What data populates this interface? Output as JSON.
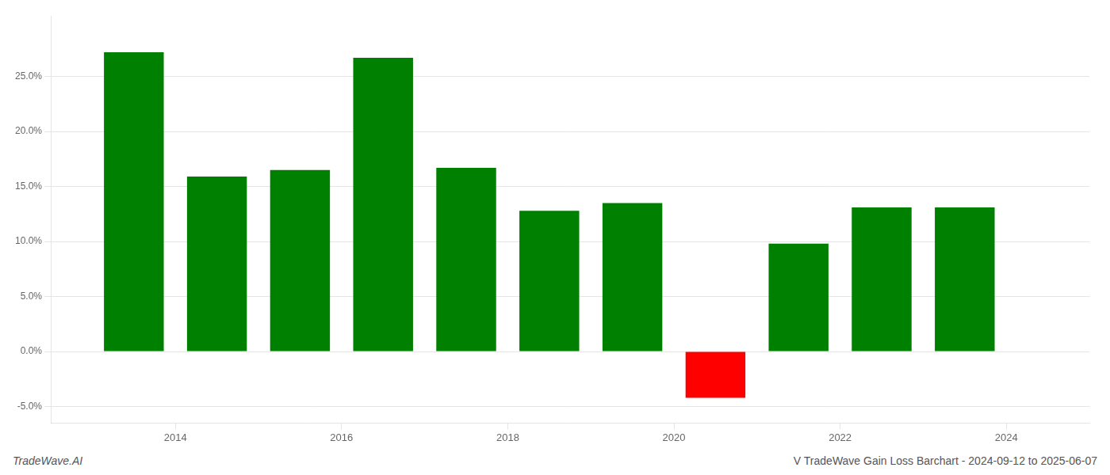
{
  "chart_data": {
    "type": "bar",
    "x": [
      2013.5,
      2014.5,
      2015.5,
      2016.5,
      2017.5,
      2018.5,
      2019.5,
      2020.5,
      2021.5,
      2022.5,
      2023.5
    ],
    "values": [
      0.272,
      0.159,
      0.165,
      0.267,
      0.167,
      0.128,
      0.135,
      -0.042,
      0.098,
      0.131,
      0.131
    ],
    "colors": [
      "#008000",
      "#008000",
      "#008000",
      "#008000",
      "#008000",
      "#008000",
      "#008000",
      "#ff0000",
      "#008000",
      "#008000",
      "#008000"
    ],
    "xlim": [
      2012.5,
      2025.0
    ],
    "xticks": [
      2014,
      2016,
      2018,
      2020,
      2022,
      2024
    ],
    "ylim": [
      -0.065,
      0.305
    ],
    "yticks": [
      {
        "value": -0.05,
        "label": "-5.0%"
      },
      {
        "value": 0.0,
        "label": "0.0%"
      },
      {
        "value": 0.05,
        "label": "5.0%"
      },
      {
        "value": 0.1,
        "label": "10.0%"
      },
      {
        "value": 0.15,
        "label": "15.0%"
      },
      {
        "value": 0.2,
        "label": "20.0%"
      },
      {
        "value": 0.25,
        "label": "25.0%"
      }
    ],
    "grid": true,
    "annotations": [
      "TradeWave.AI",
      "V TradeWave Gain Loss Barchart - 2024-09-12 to 2025-06-07"
    ]
  }
}
